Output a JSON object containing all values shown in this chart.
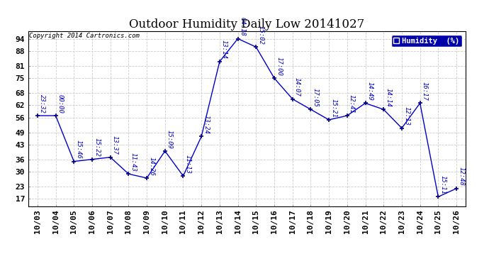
{
  "title": "Outdoor Humidity Daily Low 20141027",
  "copyright": "Copyright 2014 Cartronics.com",
  "legend_label": "Humidity  (%)",
  "x_labels": [
    "10/03",
    "10/04",
    "10/05",
    "10/06",
    "10/07",
    "10/08",
    "10/09",
    "10/10",
    "10/11",
    "10/12",
    "10/13",
    "10/14",
    "10/15",
    "10/16",
    "10/17",
    "10/18",
    "10/19",
    "10/20",
    "10/21",
    "10/22",
    "10/23",
    "10/24",
    "10/25",
    "10/26"
  ],
  "y_values": [
    57,
    57,
    35,
    36,
    37,
    29,
    27,
    40,
    28,
    47,
    83,
    94,
    90,
    75,
    65,
    60,
    55,
    57,
    63,
    60,
    51,
    63,
    18,
    22
  ],
  "time_labels": [
    "23:32",
    "00:00",
    "15:46",
    "15:22",
    "13:37",
    "11:43",
    "14:26",
    "15:09",
    "11:13",
    "13:24",
    "13:14",
    "04:18",
    "15:02",
    "17:00",
    "14:07",
    "17:05",
    "15:21",
    "12:41",
    "14:49",
    "14:14",
    "12:13",
    "16:17",
    "15:11",
    "12:48"
  ],
  "y_ticks": [
    17,
    23,
    30,
    36,
    43,
    49,
    56,
    62,
    68,
    75,
    81,
    88,
    94
  ],
  "ylim": [
    13.5,
    97.5
  ],
  "line_color": "#0000CC",
  "marker_color": "#000080",
  "bg_color": "#ffffff",
  "grid_color": "#cccccc",
  "title_fontsize": 12,
  "label_fontsize": 6.5,
  "tick_fontsize": 8,
  "legend_bg": "#0000AA",
  "legend_text_color": "#ffffff"
}
